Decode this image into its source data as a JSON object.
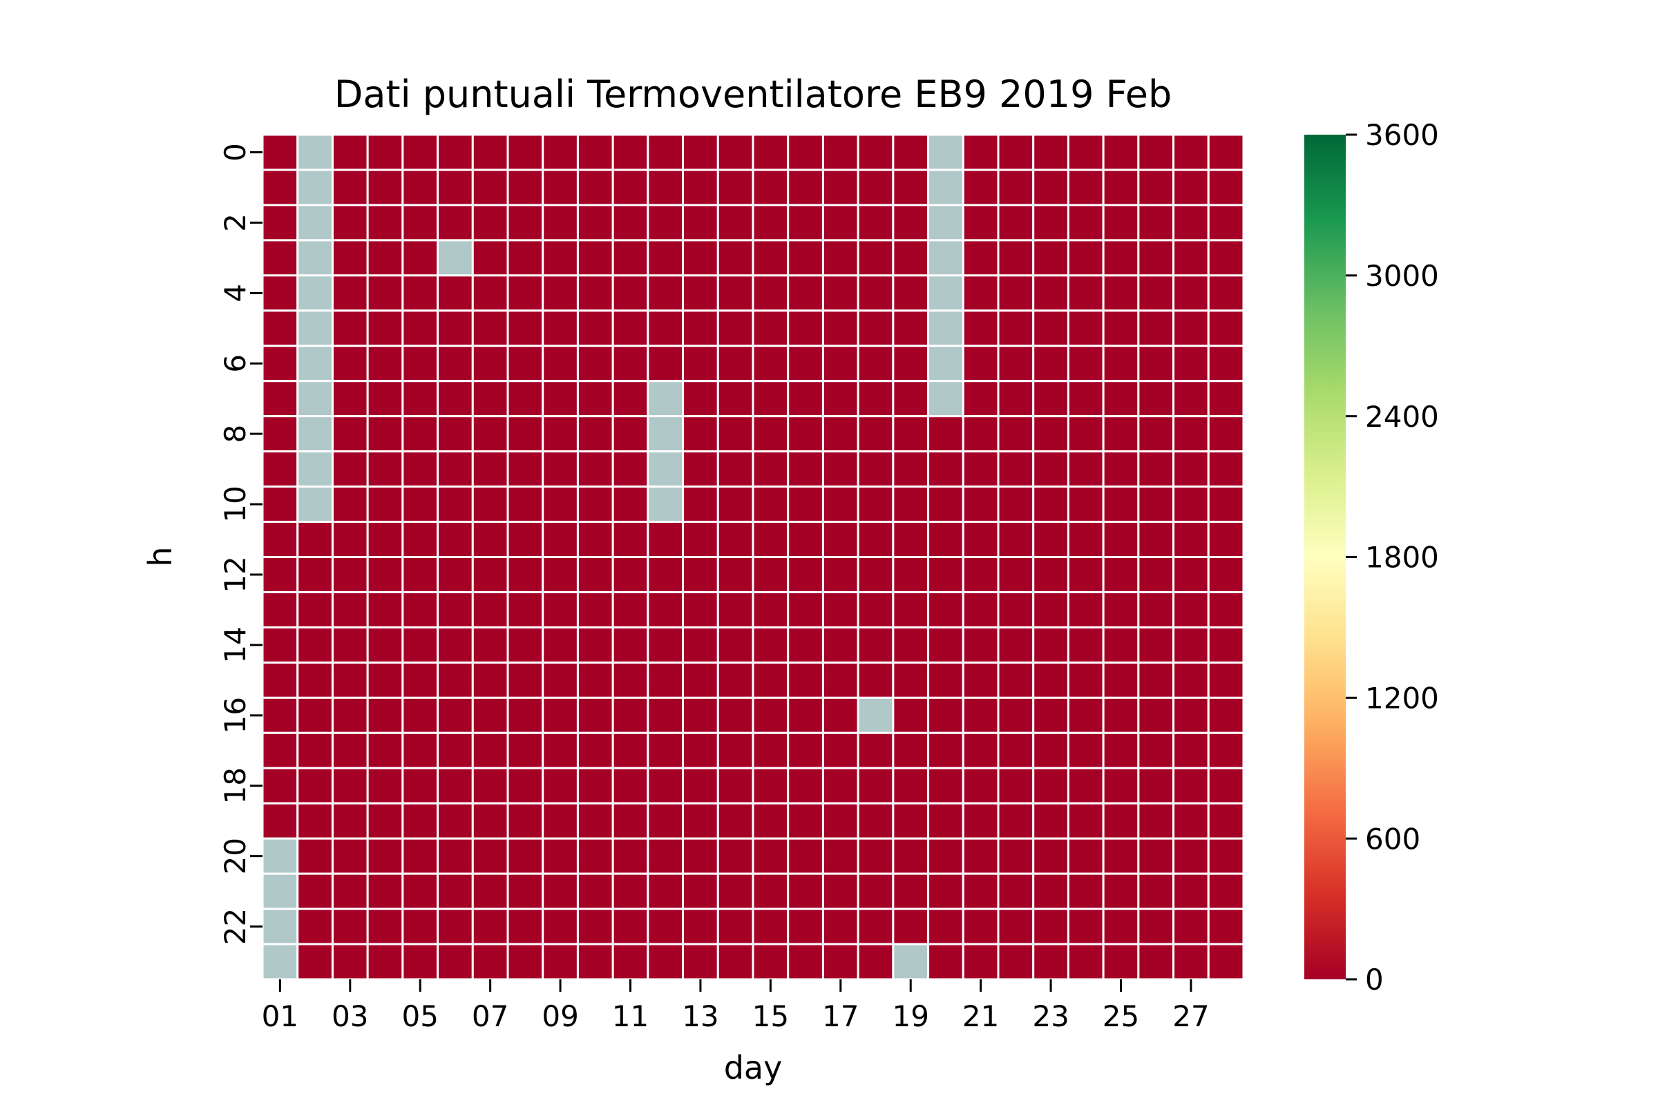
{
  "chart_data": {
    "type": "heatmap",
    "title": "Dati puntuali Termoventilatore EB9 2019 Feb",
    "xlabel": "day",
    "ylabel": "h",
    "days": [
      "01",
      "02",
      "03",
      "04",
      "05",
      "06",
      "07",
      "08",
      "09",
      "10",
      "11",
      "12",
      "13",
      "14",
      "15",
      "16",
      "17",
      "18",
      "19",
      "20",
      "21",
      "22",
      "23",
      "24",
      "25",
      "26",
      "27",
      "28"
    ],
    "hours": [
      0,
      1,
      2,
      3,
      4,
      5,
      6,
      7,
      8,
      9,
      10,
      11,
      12,
      13,
      14,
      15,
      16,
      17,
      18,
      19,
      20,
      21,
      22,
      23
    ],
    "x_tick_labels": [
      "01",
      "03",
      "05",
      "07",
      "09",
      "11",
      "13",
      "15",
      "17",
      "19",
      "21",
      "23",
      "25",
      "27"
    ],
    "y_tick_labels": [
      "0",
      "2",
      "4",
      "6",
      "8",
      "10",
      "12",
      "14",
      "16",
      "18",
      "20",
      "22"
    ],
    "value_range": [
      0,
      3600
    ],
    "cell_value_all_present": 0,
    "missing_cells": [
      [
        "02",
        0
      ],
      [
        "02",
        1
      ],
      [
        "02",
        2
      ],
      [
        "02",
        3
      ],
      [
        "02",
        4
      ],
      [
        "02",
        5
      ],
      [
        "02",
        6
      ],
      [
        "02",
        7
      ],
      [
        "02",
        8
      ],
      [
        "02",
        9
      ],
      [
        "02",
        10
      ],
      [
        "20",
        0
      ],
      [
        "20",
        1
      ],
      [
        "20",
        2
      ],
      [
        "20",
        3
      ],
      [
        "20",
        4
      ],
      [
        "20",
        5
      ],
      [
        "20",
        6
      ],
      [
        "20",
        7
      ],
      [
        "06",
        3
      ],
      [
        "12",
        7
      ],
      [
        "12",
        8
      ],
      [
        "12",
        9
      ],
      [
        "12",
        10
      ],
      [
        "18",
        16
      ],
      [
        "01",
        20
      ],
      [
        "01",
        21
      ],
      [
        "01",
        22
      ],
      [
        "01",
        23
      ],
      [
        "19",
        23
      ]
    ],
    "colorbar": {
      "min": 0,
      "max": 3600,
      "ticks": [
        0,
        600,
        1200,
        1800,
        2400,
        3000,
        3600
      ],
      "tick_labels": [
        "0",
        "600",
        "1200",
        "1800",
        "2400",
        "3000",
        "3600"
      ],
      "colormap": "RdYlGn",
      "gradient_colors": [
        "#a50026",
        "#d73027",
        "#f46d43",
        "#fdae61",
        "#fee08b",
        "#ffffbf",
        "#d9ef8b",
        "#a6d96a",
        "#66bd63",
        "#1a9850",
        "#006837"
      ]
    },
    "colors": {
      "present_cell": "#a50026",
      "missing_cell": "#b0c8c8",
      "cell_border": "#ffffff"
    },
    "grid": false
  }
}
